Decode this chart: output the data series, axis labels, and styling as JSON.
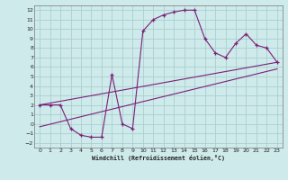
{
  "xlabel": "Windchill (Refroidissement éolien,°C)",
  "bg_color": "#ceeaea",
  "grid_color": "#aacfcf",
  "line_color": "#7b1f78",
  "xlim": [
    -0.5,
    23.5
  ],
  "ylim": [
    -2.5,
    12.5
  ],
  "xticks": [
    0,
    1,
    2,
    3,
    4,
    5,
    6,
    7,
    8,
    9,
    10,
    11,
    12,
    13,
    14,
    15,
    16,
    17,
    18,
    19,
    20,
    21,
    22,
    23
  ],
  "yticks": [
    -2,
    -1,
    0,
    1,
    2,
    3,
    4,
    5,
    6,
    7,
    8,
    9,
    10,
    11,
    12
  ],
  "line1_x": [
    0,
    23
  ],
  "line1_y": [
    2.0,
    6.5
  ],
  "line2_x": [
    0,
    23
  ],
  "line2_y": [
    -0.3,
    5.8
  ],
  "zigzag_x": [
    0,
    1,
    2,
    3,
    4,
    5,
    6,
    7,
    8,
    9,
    10,
    11,
    12,
    13,
    14,
    15,
    16,
    17,
    18,
    19,
    20,
    21,
    22,
    23
  ],
  "zigzag_y": [
    2.0,
    2.0,
    2.0,
    -0.5,
    -1.2,
    -1.4,
    -1.4,
    5.2,
    0.0,
    -0.5,
    9.8,
    11.0,
    11.5,
    11.8,
    12.0,
    12.0,
    9.0,
    7.5,
    7.0,
    8.5,
    9.5,
    8.3,
    8.0,
    6.5
  ]
}
